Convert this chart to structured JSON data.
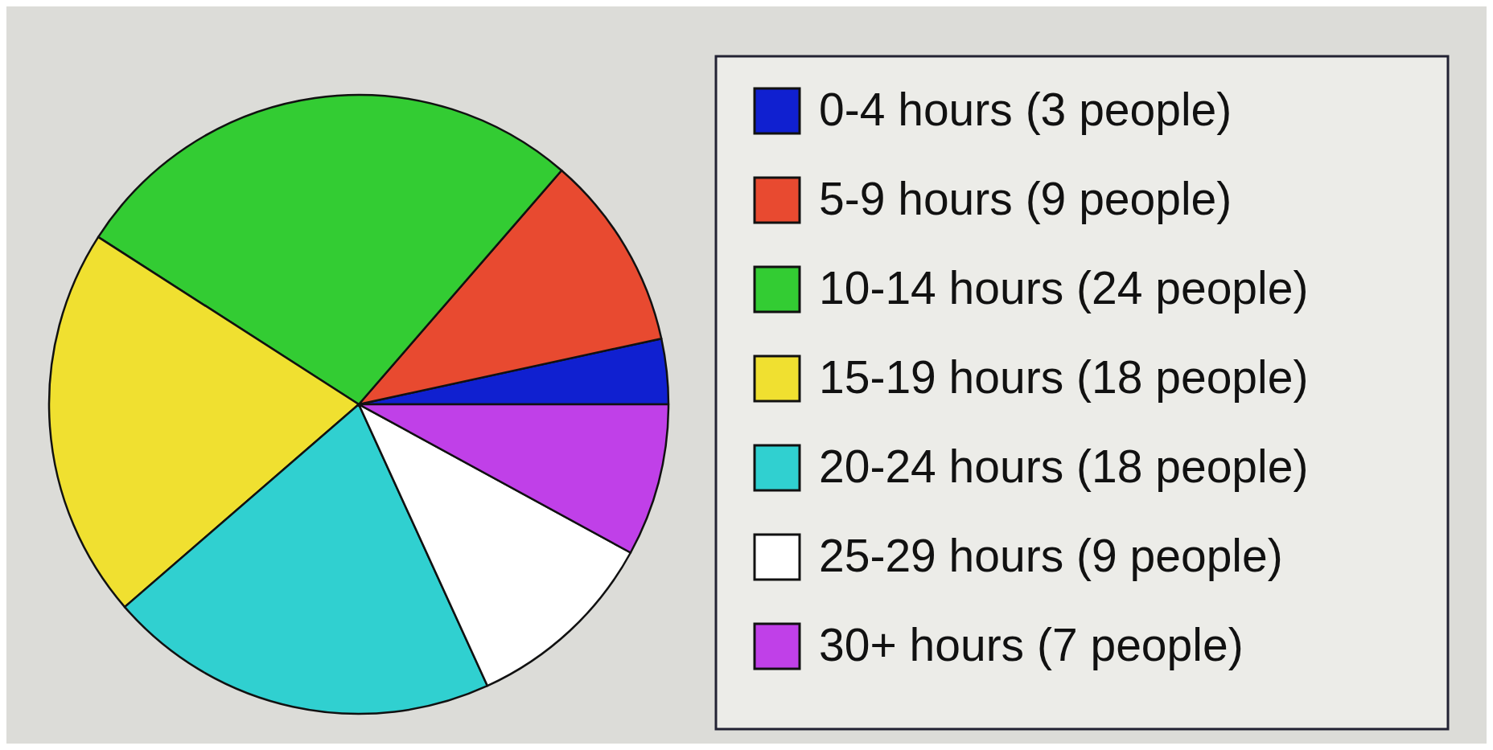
{
  "chart_data": {
    "type": "pie",
    "categories": [
      "0-4 hours (3 people)",
      "5-9 hours (9 people)",
      "10-14 hours (24 people)",
      "15-19 hours (18 people)",
      "20-24 hours (18 people)",
      "25-29 hours (9 people)",
      "30+ hours (7 people)"
    ],
    "values": [
      3,
      9,
      24,
      18,
      18,
      9,
      7
    ],
    "colors": [
      "#1020d0",
      "#e84a30",
      "#33cc33",
      "#f0e030",
      "#30d0d0",
      "#ffffff",
      "#c040e8"
    ],
    "legend": "right"
  }
}
